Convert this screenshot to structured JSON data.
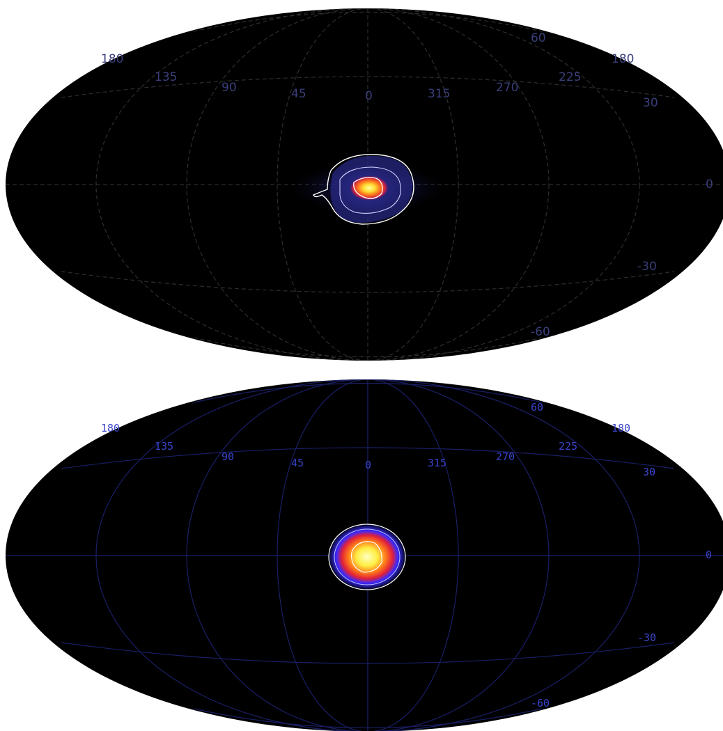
{
  "maps": [
    {
      "id": "top",
      "style": "dashed",
      "longitude_labels": [
        "180",
        "135",
        "90",
        "45",
        "0",
        "315",
        "270",
        "225",
        "180"
      ],
      "latitude_labels": [
        "60",
        "30",
        "0",
        "-30",
        "-60"
      ],
      "colors": {
        "background": "#000000",
        "grid": "#2a2a2a",
        "labels": "#3a3f7a",
        "contour": "#ffffff"
      }
    },
    {
      "id": "bottom",
      "style": "solid",
      "longitude_labels": [
        "180",
        "135",
        "90",
        "45",
        "0",
        "315",
        "270",
        "225",
        "180"
      ],
      "latitude_labels": [
        "60",
        "30",
        "0",
        "-30",
        "-60"
      ],
      "colors": {
        "background": "#000000",
        "grid": "#1a1f66",
        "labels": "#3a44cc",
        "contour": "#ffffff"
      }
    }
  ]
}
